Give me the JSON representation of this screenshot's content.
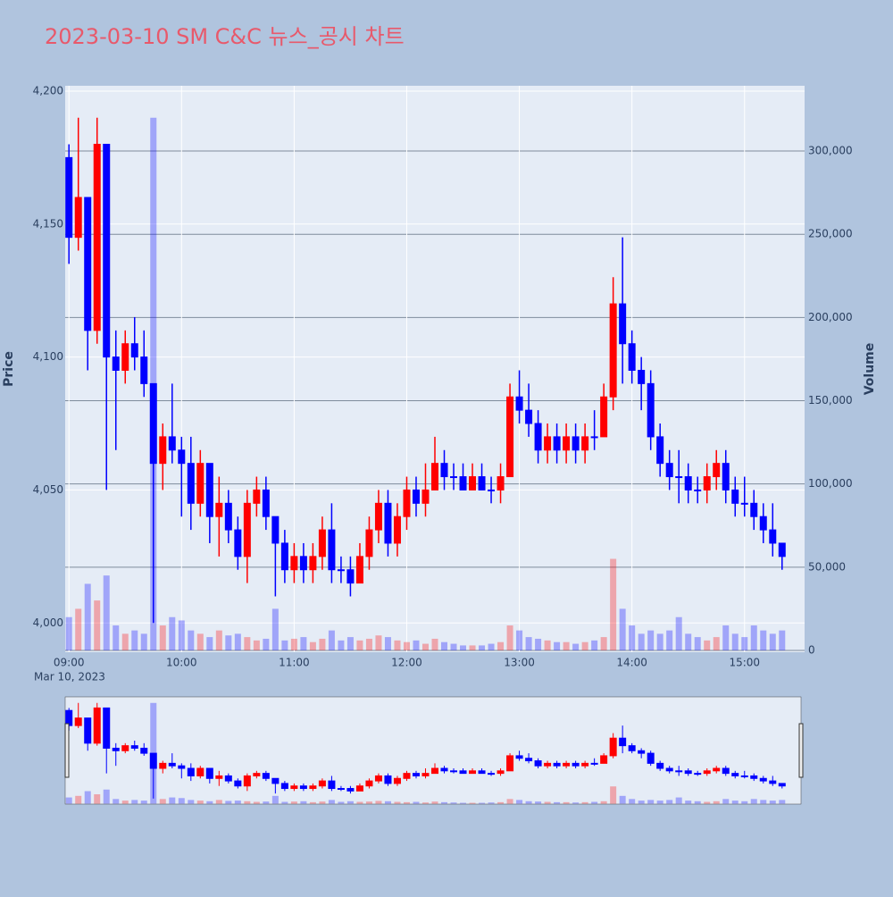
{
  "chart_data": {
    "type": "candlestick",
    "title": "2023-03-10 SM C&C 뉴스_공시 차트",
    "y_title": "Price",
    "y2_title": "Volume",
    "x_date_label": "Mar 10, 2023",
    "increasing_color": "#ff0000",
    "decreasing_color": "#0000ff",
    "x": [
      "09:00",
      "09:05",
      "09:10",
      "09:15",
      "09:20",
      "09:25",
      "09:30",
      "09:35",
      "09:40",
      "09:45",
      "09:50",
      "09:55",
      "10:00",
      "10:05",
      "10:10",
      "10:15",
      "10:20",
      "10:25",
      "10:30",
      "10:35",
      "10:40",
      "10:45",
      "10:50",
      "10:55",
      "11:00",
      "11:05",
      "11:10",
      "11:15",
      "11:20",
      "11:25",
      "11:30",
      "11:35",
      "11:40",
      "11:45",
      "11:50",
      "11:55",
      "12:00",
      "12:05",
      "12:10",
      "12:15",
      "12:20",
      "12:25",
      "12:30",
      "12:35",
      "12:40",
      "12:45",
      "12:50",
      "12:55",
      "13:00",
      "13:05",
      "13:10",
      "13:15",
      "13:20",
      "13:25",
      "13:30",
      "13:35",
      "13:40",
      "13:45",
      "13:50",
      "13:55",
      "14:00",
      "14:05",
      "14:10",
      "14:15",
      "14:20",
      "14:25",
      "14:30",
      "14:35",
      "14:40",
      "14:45",
      "14:50",
      "14:55",
      "15:00",
      "15:05",
      "15:10",
      "15:15",
      "15:20"
    ],
    "open": [
      4175,
      4145,
      4160,
      4110,
      4180,
      4100,
      4095,
      4105,
      4100,
      4090,
      4060,
      4070,
      4065,
      4060,
      4045,
      4060,
      4040,
      4045,
      4035,
      4025,
      4045,
      4050,
      4040,
      4030,
      4020,
      4025,
      4020,
      4025,
      4035,
      4020,
      4020,
      4015,
      4025,
      4035,
      4045,
      4030,
      4040,
      4050,
      4045,
      4050,
      4060,
      4055,
      4055,
      4050,
      4055,
      4050,
      4050,
      4055,
      4085,
      4080,
      4075,
      4065,
      4070,
      4065,
      4070,
      4065,
      4070,
      4070,
      4085,
      4120,
      4105,
      4095,
      4090,
      4070,
      4060,
      4055,
      4055,
      4050,
      4050,
      4055,
      4060,
      4050,
      4045,
      4045,
      4040,
      4035,
      4030
    ],
    "high": [
      4180,
      4190,
      4160,
      4190,
      4180,
      4110,
      4110,
      4115,
      4110,
      4090,
      4075,
      4090,
      4070,
      4070,
      4065,
      4060,
      4055,
      4050,
      4040,
      4050,
      4055,
      4055,
      4040,
      4035,
      4030,
      4030,
      4030,
      4040,
      4045,
      4025,
      4025,
      4030,
      4040,
      4050,
      4050,
      4045,
      4055,
      4055,
      4060,
      4070,
      4065,
      4060,
      4060,
      4060,
      4060,
      4055,
      4060,
      4090,
      4095,
      4090,
      4080,
      4075,
      4075,
      4075,
      4075,
      4075,
      4080,
      4090,
      4130,
      4145,
      4110,
      4100,
      4095,
      4075,
      4065,
      4065,
      4060,
      4055,
      4060,
      4065,
      4065,
      4055,
      4055,
      4050,
      4045,
      4045,
      4030
    ],
    "low": [
      4135,
      4140,
      4095,
      4105,
      4050,
      4065,
      4090,
      4095,
      4085,
      4000,
      4050,
      4060,
      4040,
      4035,
      4040,
      4030,
      4025,
      4030,
      4020,
      4015,
      4040,
      4035,
      4010,
      4015,
      4015,
      4015,
      4015,
      4020,
      4015,
      4015,
      4010,
      4015,
      4020,
      4030,
      4025,
      4025,
      4035,
      4040,
      4040,
      4050,
      4050,
      4050,
      4050,
      4050,
      4050,
      4045,
      4045,
      4055,
      4075,
      4070,
      4060,
      4060,
      4060,
      4060,
      4060,
      4060,
      4065,
      4070,
      4080,
      4090,
      4090,
      4080,
      4065,
      4055,
      4050,
      4045,
      4045,
      4045,
      4045,
      4050,
      4045,
      4040,
      4040,
      4035,
      4030,
      4025,
      4020
    ],
    "close": [
      4145,
      4160,
      4110,
      4180,
      4100,
      4095,
      4105,
      4100,
      4090,
      4060,
      4070,
      4065,
      4060,
      4045,
      4060,
      4040,
      4045,
      4035,
      4025,
      4045,
      4050,
      4040,
      4030,
      4020,
      4025,
      4020,
      4025,
      4035,
      4020,
      4020,
      4015,
      4025,
      4035,
      4045,
      4030,
      4040,
      4050,
      4045,
      4050,
      4060,
      4055,
      4055,
      4050,
      4055,
      4050,
      4050,
      4055,
      4085,
      4080,
      4075,
      4065,
      4070,
      4065,
      4070,
      4065,
      4070,
      4070,
      4085,
      4120,
      4105,
      4095,
      4090,
      4070,
      4060,
      4055,
      4055,
      4050,
      4050,
      4055,
      4060,
      4050,
      4045,
      4045,
      4040,
      4035,
      4030,
      4025
    ],
    "volume": [
      20000,
      25000,
      40000,
      30000,
      45000,
      15000,
      10000,
      12000,
      10000,
      320000,
      15000,
      20000,
      18000,
      12000,
      10000,
      8000,
      12000,
      9000,
      10000,
      8000,
      6000,
      7000,
      25000,
      6000,
      7000,
      8000,
      5000,
      7000,
      12000,
      6000,
      8000,
      6000,
      7000,
      9000,
      8000,
      6000,
      5000,
      6000,
      4000,
      7000,
      5000,
      4000,
      3000,
      3000,
      3000,
      4000,
      5000,
      15000,
      12000,
      8000,
      7000,
      6000,
      5000,
      5000,
      4000,
      5000,
      6000,
      8000,
      55000,
      25000,
      15000,
      10000,
      12000,
      10000,
      12000,
      20000,
      10000,
      8000,
      6000,
      8000,
      15000,
      10000,
      8000,
      15000,
      12000,
      10000,
      12000
    ],
    "xlim": [
      "08:58",
      "15:32"
    ],
    "xticks": [
      "09:00",
      "10:00",
      "11:00",
      "12:00",
      "13:00",
      "14:00",
      "15:00"
    ],
    "ylim": [
      3989,
      4202
    ],
    "yticks": [
      {
        "value": 4000,
        "label": "4,000"
      },
      {
        "value": 4050,
        "label": "4,050"
      },
      {
        "value": 4100,
        "label": "4,100"
      },
      {
        "value": 4150,
        "label": "4,150"
      },
      {
        "value": 4200,
        "label": "4,200"
      }
    ],
    "y2lim": [
      -1073,
      339200
    ],
    "y2ticks": [
      0,
      {
        "value": 50000,
        "label": "50,000"
      },
      {
        "value": 100000,
        "label": "100,000"
      },
      {
        "value": 150000,
        "label": "150,000"
      },
      {
        "value": 200000,
        "label": "200,000"
      },
      {
        "value": 250000,
        "label": "250,000"
      },
      {
        "value": 300000,
        "label": "300,000"
      }
    ]
  }
}
